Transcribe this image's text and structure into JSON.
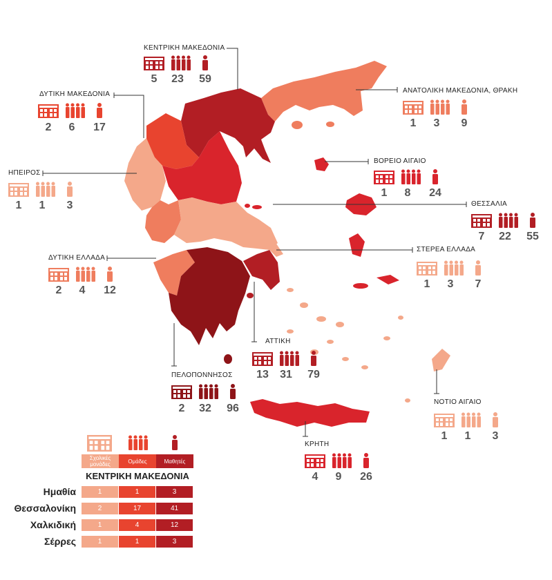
{
  "colors": {
    "c_light": "#f4a88a",
    "c_mid": "#ef7d5e",
    "c_orange_red": "#e8442f",
    "c_red": "#d9242c",
    "c_dark": "#b21e24",
    "c_darkest": "#8e1418"
  },
  "legend": {
    "schools_label": "Σχολικές μονάδες",
    "groups_label": "Ομάδες",
    "students_label": "Μαθητές",
    "schools_icon": "school-building-icon",
    "groups_icon": "group-of-people-icon",
    "students_icon": "person-icon"
  },
  "regions": [
    {
      "id": "kentriki-makedonia",
      "name": "ΚΕΝΤΡΙΚΗ ΜΑΚΕΔΟΝΙΑ",
      "schools": "5",
      "groups": "23",
      "students": "59",
      "color": "#b21e24"
    },
    {
      "id": "anatoliki-makedonia",
      "name": "ΑΝΑΤΟΛΙΚΗ ΜΑΚΕΔΟΝΙΑ, ΘΡΑΚΗ",
      "schools": "1",
      "groups": "3",
      "students": "9",
      "color": "#ef7d5e"
    },
    {
      "id": "dytiki-makedonia",
      "name": "ΔΥΤΙΚΗ ΜΑΚΕΔΟΝΙΑ",
      "schools": "2",
      "groups": "6",
      "students": "17",
      "color": "#e8442f"
    },
    {
      "id": "ipeiros",
      "name": "ΗΠΕΙΡΟΣ",
      "schools": "1",
      "groups": "1",
      "students": "3",
      "color": "#f4a88a"
    },
    {
      "id": "voreio-aigaio",
      "name": "ΒΟΡΕΙΟ ΑΙΓΑΙΟ",
      "schools": "1",
      "groups": "8",
      "students": "24",
      "color": "#d9242c"
    },
    {
      "id": "thessalia",
      "name": "ΘΕΣΣΑΛΙΑ",
      "schools": "7",
      "groups": "22",
      "students": "55",
      "color": "#b21e24"
    },
    {
      "id": "sterea-ellada",
      "name": "ΣΤΕΡΕΑ ΕΛΛΑΔΑ",
      "schools": "1",
      "groups": "3",
      "students": "7",
      "color": "#f4a88a"
    },
    {
      "id": "dytiki-ellada",
      "name": "ΔΥΤΙΚΗ ΕΛΛΑΔΑ",
      "schools": "2",
      "groups": "4",
      "students": "12",
      "color": "#ef7d5e"
    },
    {
      "id": "attiki",
      "name": "ΑΤΤΙΚΗ",
      "schools": "13",
      "groups": "31",
      "students": "79",
      "color": "#b21e24"
    },
    {
      "id": "peloponnisos",
      "name": "ΠΕΛΟΠΟΝΝΗΣΟΣ",
      "schools": "2",
      "groups": "32",
      "students": "96",
      "color": "#8e1418"
    },
    {
      "id": "notio-aigaio",
      "name": "ΝΟΤΙΟ ΑΙΓΑΙΟ",
      "schools": "1",
      "groups": "1",
      "students": "3",
      "color": "#f4a88a"
    },
    {
      "id": "kriti",
      "name": "ΚΡΗΤΗ",
      "schools": "4",
      "groups": "9",
      "students": "26",
      "color": "#d9242c"
    }
  ],
  "table": {
    "title": "ΚΕΝΤΡΙΚΗ ΜΑΚΕΔΟΝΙΑ",
    "rows": [
      {
        "name": "Ημαθία",
        "schools": "1",
        "groups": "1",
        "students": "3"
      },
      {
        "name": "Θεσσαλονίκη",
        "schools": "2",
        "groups": "17",
        "students": "41"
      },
      {
        "name": "Χαλκιδική",
        "schools": "1",
        "groups": "4",
        "students": "12"
      },
      {
        "name": "Σέρρες",
        "schools": "1",
        "groups": "1",
        "students": "3"
      }
    ]
  }
}
